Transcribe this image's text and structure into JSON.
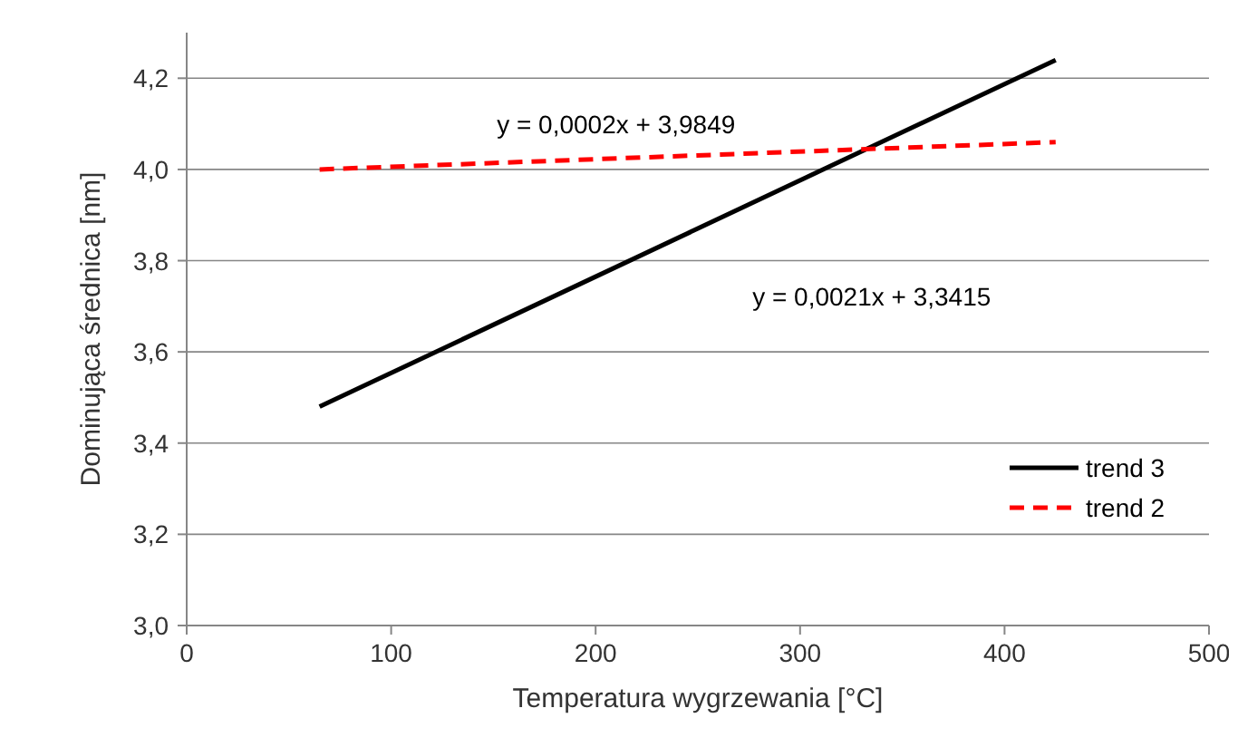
{
  "chart_data": {
    "type": "line",
    "xlabel": "Temperatura wygrzewania [°C]",
    "ylabel": "Dominująca średnica [nm]",
    "x": [
      65,
      425
    ],
    "series": [
      {
        "name": "trend 3",
        "color": "#000000",
        "values": [
          3.48,
          4.24
        ],
        "line_style": "solid"
      },
      {
        "name": "trend 2",
        "color": "#ff0000",
        "values": [
          4.0,
          4.06
        ],
        "line_style": "dashed"
      }
    ],
    "xlim": [
      0,
      500
    ],
    "xticks": [
      0,
      100,
      200,
      300,
      400,
      500
    ],
    "ylim": [
      3.0,
      4.3
    ],
    "yticks": [
      {
        "value": 3.0,
        "label": "3,0"
      },
      {
        "value": 3.2,
        "label": "3,2"
      },
      {
        "value": 3.4,
        "label": "3,4"
      },
      {
        "value": 3.6,
        "label": "3,6"
      },
      {
        "value": 3.8,
        "label": "3,8"
      },
      {
        "value": 4.0,
        "label": "4,0"
      },
      {
        "value": 4.2,
        "label": "4,2"
      }
    ],
    "grid": "y",
    "legend": "right",
    "annotations": [
      "y = 0,0002x + 3,9849",
      "y = 0,0021x + 3,3415"
    ]
  }
}
